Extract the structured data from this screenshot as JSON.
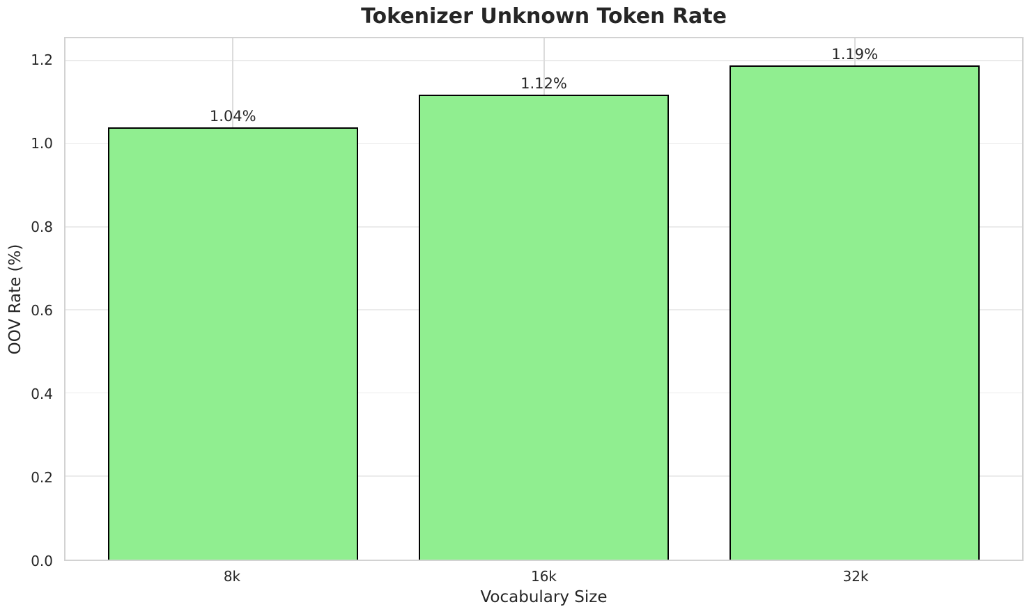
{
  "chart_data": {
    "type": "bar",
    "title": "Tokenizer Unknown Token Rate",
    "xlabel": "Vocabulary Size",
    "ylabel": "OOV Rate (%)",
    "categories": [
      "8k",
      "16k",
      "32k"
    ],
    "values": [
      1.04,
      1.12,
      1.19
    ],
    "bar_value_labels": [
      "1.04%",
      "1.12%",
      "1.19%"
    ],
    "yticks": [
      0.0,
      0.2,
      0.4,
      0.6,
      0.8,
      1.0,
      1.2
    ],
    "ytick_labels": [
      "0.0",
      "0.2",
      "0.4",
      "0.6",
      "0.8",
      "1.0",
      "1.2"
    ],
    "ylim": [
      0,
      1.255
    ],
    "grid": true,
    "legend": false,
    "colors": {
      "bar_fill": "#90EE90",
      "bar_edge": "#000000",
      "h_grid": "#EBEBEB",
      "v_grid": "#DCDCDC",
      "spine": "#D2D2D2",
      "text": "#262626",
      "background": "#FFFFFF"
    }
  }
}
